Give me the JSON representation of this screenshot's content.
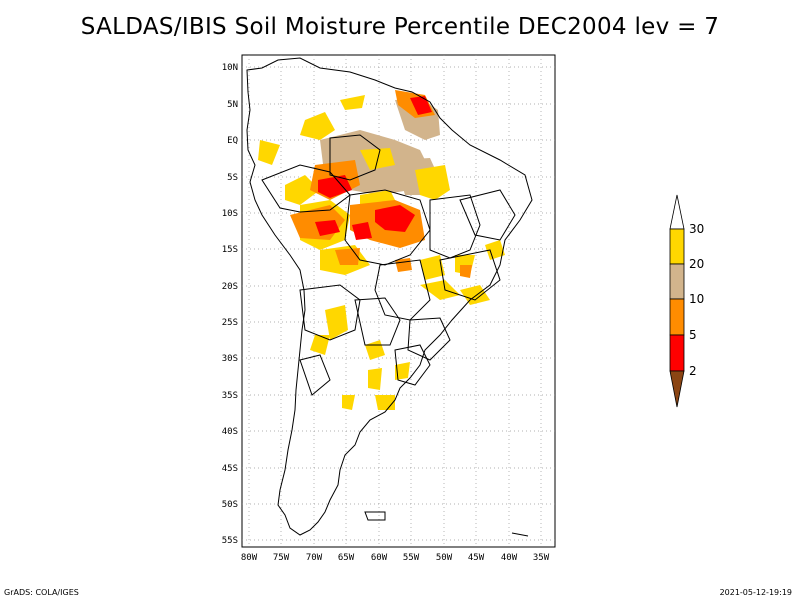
{
  "title": "SALDAS/IBIS Soil Moisture Percentile DEC2004 lev = 7",
  "footer": {
    "left": "GrADS: COLA/IGES",
    "right": "2021-05-12-19:19"
  },
  "axes": {
    "lon_labels": [
      "80W",
      "75W",
      "70W",
      "65W",
      "60W",
      "55W",
      "50W",
      "45W",
      "40W",
      "35W"
    ],
    "lat_labels": [
      "10N",
      "5N",
      "EQ",
      "5S",
      "10S",
      "15S",
      "20S",
      "25S",
      "30S",
      "35S",
      "40S",
      "45S",
      "50S",
      "55S"
    ]
  },
  "colorbar": {
    "levels": [
      "2",
      "5",
      "10",
      "20",
      "30"
    ],
    "colors": [
      "#8b4513",
      "#ff0000",
      "#ff8c00",
      "#d2b48c",
      "#ffd700",
      "#ffffff"
    ]
  },
  "map": {
    "projection": "lat-lon",
    "lon_range": [
      -81,
      -33
    ],
    "lat_range": [
      -56,
      12
    ],
    "grid": "dotted",
    "region": "South America"
  }
}
